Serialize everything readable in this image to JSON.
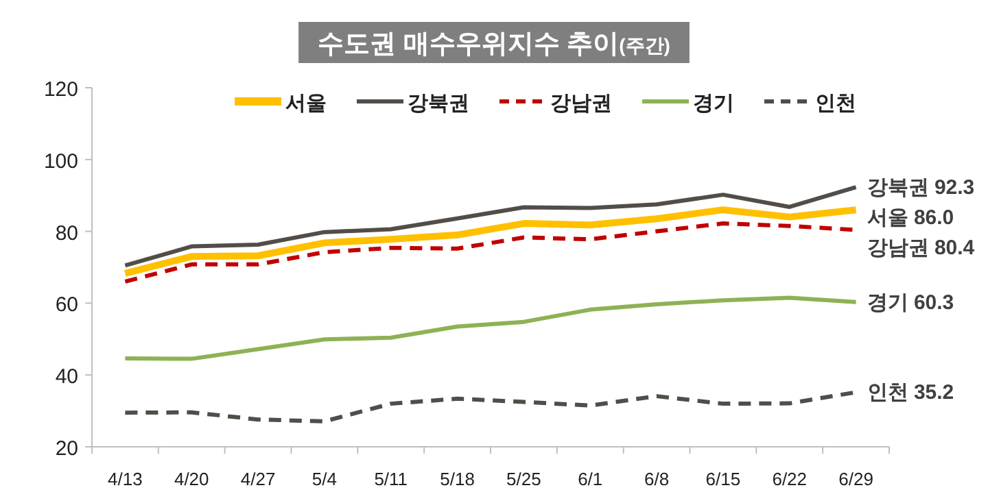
{
  "chart_data": {
    "type": "line",
    "title": "수도권 매수우위지수 추이$_{(주간)}$",
    "categories": [
      "4/13",
      "4/20",
      "4/27",
      "5/4",
      "5/11",
      "5/18",
      "5/25",
      "6/1",
      "6/8",
      "6/15",
      "6/22",
      "6/29"
    ],
    "series": [
      {
        "name": "서울",
        "color": "#ffc000",
        "line_style": "solid",
        "values": [
          68.3,
          73.0,
          73.2,
          76.8,
          77.8,
          79.0,
          82.2,
          81.8,
          83.5,
          86.0,
          84.0,
          86.0
        ]
      },
      {
        "name": "강북권",
        "color": "#524d48",
        "line_style": "solid",
        "values": [
          70.5,
          75.8,
          76.3,
          79.8,
          80.6,
          83.6,
          86.7,
          86.5,
          87.5,
          90.2,
          86.8,
          92.3
        ]
      },
      {
        "name": "강남권",
        "color": "#c00000",
        "line_style": "dashed",
        "values": [
          66.0,
          70.8,
          70.8,
          74.2,
          75.4,
          75.2,
          78.3,
          77.8,
          80.0,
          82.2,
          81.5,
          80.4
        ]
      },
      {
        "name": "경기",
        "color": "#8db255",
        "line_style": "solid",
        "values": [
          44.6,
          44.5,
          47.2,
          49.9,
          50.4,
          53.5,
          54.8,
          58.2,
          59.7,
          60.8,
          61.5,
          60.3
        ]
      },
      {
        "name": "인천",
        "color": "#524d48",
        "line_style": "dashed",
        "values": [
          29.5,
          29.6,
          27.6,
          27.1,
          32.0,
          33.4,
          32.5,
          31.5,
          34.1,
          32.0,
          32.1,
          35.2
        ]
      }
    ],
    "ylim": [
      20,
      120
    ],
    "yticks": [
      20,
      40,
      60,
      80,
      100,
      120
    ],
    "grid": false,
    "legend": "top",
    "annotations": [
      {
        "text": "강북권 92.3",
        "x": "6/29",
        "y": 92.3
      },
      {
        "text": "서울 86.0",
        "x": "6/29",
        "y": 86.0
      },
      {
        "text": "강남권 80.4",
        "x": "6/29",
        "y": 80.4
      },
      {
        "text": "경기 60.3",
        "x": "6/29",
        "y": 60.3
      },
      {
        "text": "인천 35.2",
        "x": "6/29",
        "y": 35.2
      }
    ]
  }
}
